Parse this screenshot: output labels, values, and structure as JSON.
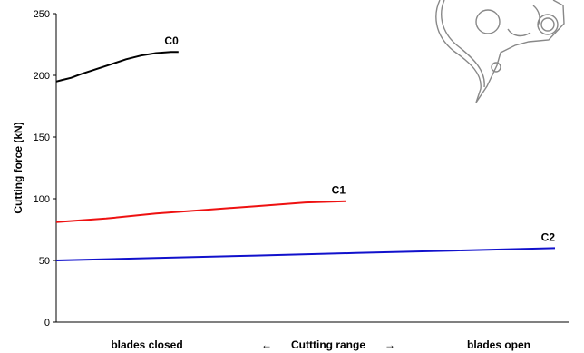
{
  "chart_data": {
    "type": "line",
    "title": "",
    "ylabel": "Cutting force (kN)",
    "ylim": [
      0,
      250
    ],
    "yticks": [
      0,
      50,
      100,
      150,
      200,
      250
    ],
    "xlim": [
      0,
      1
    ],
    "grid": false,
    "x_labels": {
      "left": "blades closed",
      "center": "Cuttting range",
      "right": "blades open",
      "arrow_left": "←",
      "arrow_right": "→"
    },
    "series": [
      {
        "name": "C0",
        "color": "#000000",
        "x": [
          0,
          0.01,
          0.03,
          0.05,
          0.08,
          0.11,
          0.14,
          0.17,
          0.2,
          0.23,
          0.245
        ],
        "y": [
          195,
          196,
          198,
          201,
          205,
          209,
          213,
          216,
          218,
          219,
          219
        ]
      },
      {
        "name": "C1",
        "color": "#ee1111",
        "x": [
          0,
          0.1,
          0.2,
          0.3,
          0.4,
          0.5,
          0.58
        ],
        "y": [
          81,
          84,
          88,
          91,
          94,
          97,
          98
        ]
      },
      {
        "name": "C2",
        "color": "#1111cc",
        "x": [
          0,
          0.2,
          0.4,
          0.6,
          0.8,
          1.0
        ],
        "y": [
          50,
          52,
          54,
          56,
          58,
          60
        ]
      }
    ]
  },
  "illustration": {
    "icon": "blade-cutter-icon"
  }
}
